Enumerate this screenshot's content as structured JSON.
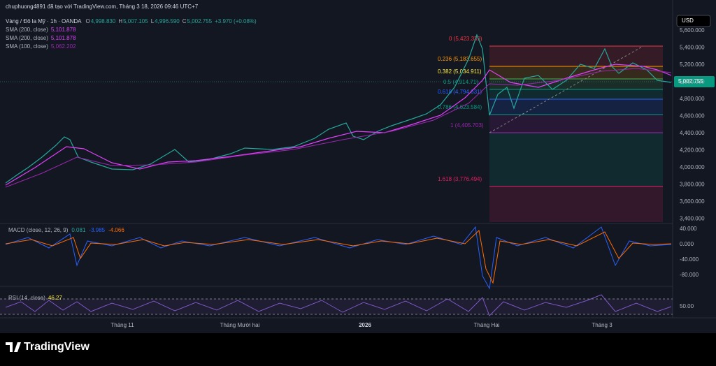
{
  "header": {
    "title": "chuphuong4891 đã tạo với TradingView.com, Tháng 3 18, 2026 09:46 UTC+7"
  },
  "legend": {
    "symbol": "Vàng / Đô la Mỹ · 1h · OANDA",
    "ohlc": [
      {
        "key": "O",
        "value": "4,998.830"
      },
      {
        "key": "H",
        "value": "5,007.105"
      },
      {
        "key": "L",
        "value": "4,996.590"
      },
      {
        "key": "C",
        "value": "5,002.755"
      }
    ],
    "change": "+3.970 (+0.08%)",
    "indicators": [
      {
        "name": "SMA (200, close)",
        "value": "5,101.878"
      },
      {
        "name": "SMA (200, close)",
        "value": "5,101.878"
      },
      {
        "name": "SMA (100, close)",
        "value": "5,062.202"
      }
    ]
  },
  "price_axis": {
    "currency": "USD",
    "ticks": [
      "5,600.000",
      "5,400.000",
      "5,200.000",
      "5,000.000",
      "4,800.000",
      "4,600.000",
      "4,400.000",
      "4,200.000",
      "4,000.000",
      "3,800.000",
      "3,600.000",
      "3,400.000"
    ],
    "last_price": "5,002.755"
  },
  "fibonacci": [
    "0 (5,423.339)",
    "0.236 (5,183.655)",
    "0.382 (5,034.911)",
    "0.5 (4,914.71)",
    "0.618 (4,794.631)",
    "0.786 (4,623.584)",
    "1 (4,405.703)",
    "1.618 (3,776.494)"
  ],
  "macd": {
    "label": "MACD (close, 12, 26, 9)",
    "values": [
      "0.081",
      "-3.985",
      "-4.066"
    ],
    "ticks": [
      "40.000",
      "0.000",
      "-40.000",
      "-80.000"
    ]
  },
  "rsi": {
    "label": "RSI (14, close)",
    "value": "46.27",
    "ticks": [
      "50.00"
    ]
  },
  "time_axis": [
    "Tháng 11",
    "Tháng Mười hai",
    "2026",
    "Tháng Hai",
    "Tháng 3"
  ],
  "footer": {
    "brand": "TradingView"
  }
}
